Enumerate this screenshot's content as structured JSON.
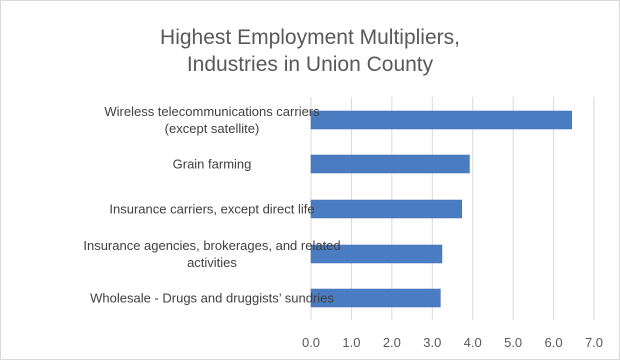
{
  "chart_data": {
    "type": "bar",
    "orientation": "horizontal",
    "title_lines": [
      "Highest Employment Multipliers,",
      "Industries in Union County"
    ],
    "categories": [
      [
        "Wireless telecommunications carriers",
        "(except satellite)"
      ],
      [
        "Grain farming"
      ],
      [
        "Insurance carriers, except direct life"
      ],
      [
        "Insurance agencies, brokerages, and related",
        "activities"
      ],
      [
        "Wholesale - Drugs and druggists’ sundries"
      ]
    ],
    "values": [
      6.45,
      3.92,
      3.73,
      3.24,
      3.2
    ],
    "xlim": [
      0,
      7
    ],
    "xticks": [
      "0.0",
      "1.0",
      "2.0",
      "3.0",
      "4.0",
      "5.0",
      "6.0",
      "7.0"
    ],
    "grid": "vertical",
    "legend": "none",
    "colors": {
      "bar": "#4a7cc2",
      "bar_edge": "#3f6fb3",
      "grid": "#d9d9d9",
      "text": "#404040",
      "title": "#595959"
    }
  }
}
